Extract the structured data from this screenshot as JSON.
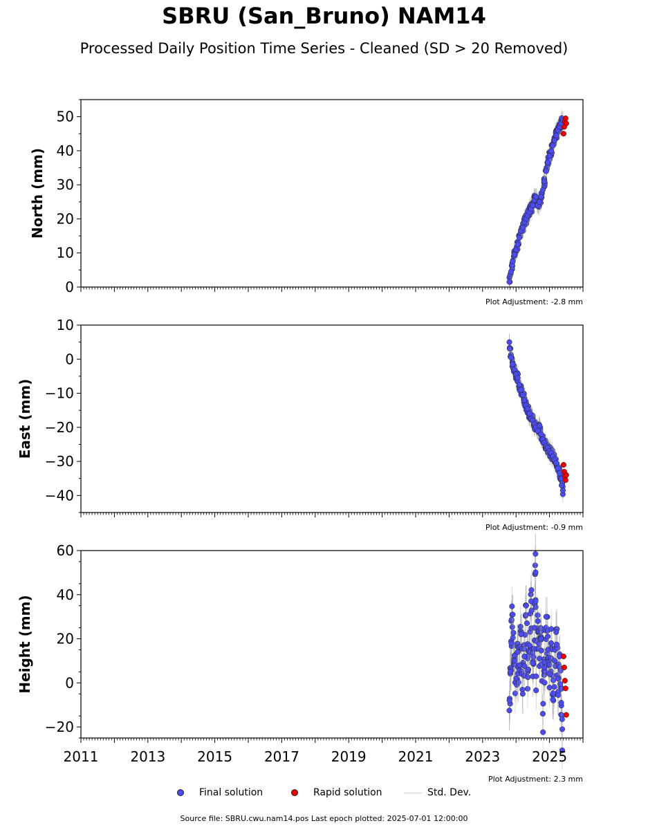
{
  "title": "SBRU (San_Bruno) NAM14",
  "subtitle": "Processed Daily Position Time Series - Cleaned (SD > 20 Removed)",
  "legend": {
    "final_label": "Final solution",
    "rapid_label": "Rapid solution",
    "std_label": "Std. Dev."
  },
  "colors": {
    "final": "#4b4bee",
    "rapid": "#ee0000",
    "std": "#bdbdbd",
    "edge": "#222222"
  },
  "footer": "Source file: SBRU.cwu.nam14.pos  Last epoch plotted: 2025-07-01 12:00:00",
  "chart_data": [
    {
      "type": "scatter",
      "ylabel": "North (mm)",
      "adjustment": "Plot Adjustment: -2.8 mm",
      "xlim": [
        2011,
        2026
      ],
      "ylim": [
        0,
        55
      ],
      "yticks": [
        0,
        10,
        20,
        30,
        40,
        50
      ],
      "xtick_labels_shown": false,
      "series": [
        {
          "name": "Final solution",
          "x": [
            2023.8,
            2023.85,
            2023.9,
            2023.95,
            2024.0,
            2024.05,
            2024.1,
            2024.15,
            2024.2,
            2024.25,
            2024.3,
            2024.35,
            2024.4,
            2024.45,
            2024.5,
            2024.55,
            2024.6,
            2024.65,
            2024.7,
            2024.75,
            2024.8,
            2024.85,
            2024.9,
            2024.95,
            2025.0,
            2025.05,
            2025.1,
            2025.15,
            2025.2,
            2025.25,
            2025.3,
            2025.35,
            2025.4
          ],
          "y": [
            1.5,
            4.5,
            7.5,
            9.5,
            11.0,
            12.5,
            14.5,
            16.5,
            17.5,
            19.0,
            20.0,
            21.0,
            22.0,
            23.0,
            24.0,
            25.5,
            26.5,
            24.0,
            25.0,
            26.5,
            28.5,
            31.0,
            34.0,
            36.5,
            38.5,
            40.0,
            41.5,
            43.0,
            44.5,
            46.0,
            47.0,
            48.0,
            49.0
          ]
        },
        {
          "name": "Rapid solution",
          "x": [
            2025.42,
            2025.44,
            2025.46,
            2025.48,
            2025.5
          ],
          "y": [
            45.0,
            47.0,
            48.5,
            49.5,
            48.0
          ]
        }
      ]
    },
    {
      "type": "scatter",
      "ylabel": "East (mm)",
      "adjustment": "Plot Adjustment: -0.9 mm",
      "xlim": [
        2011,
        2026
      ],
      "ylim": [
        -45,
        10
      ],
      "yticks": [
        -40,
        -30,
        -20,
        -10,
        0,
        10
      ],
      "xtick_labels_shown": false,
      "series": [
        {
          "name": "Final solution",
          "x": [
            2023.8,
            2023.85,
            2023.9,
            2023.95,
            2024.0,
            2024.05,
            2024.1,
            2024.15,
            2024.2,
            2024.25,
            2024.3,
            2024.35,
            2024.4,
            2024.45,
            2024.5,
            2024.55,
            2024.6,
            2024.65,
            2024.7,
            2024.75,
            2024.8,
            2024.85,
            2024.9,
            2024.95,
            2025.0,
            2025.05,
            2025.1,
            2025.15,
            2025.2,
            2025.25,
            2025.3,
            2025.35,
            2025.4
          ],
          "y": [
            5.0,
            0.5,
            -1.5,
            -3.0,
            -4.5,
            -5.5,
            -7.5,
            -9.0,
            -10.5,
            -12.0,
            -13.5,
            -14.5,
            -16.0,
            -17.5,
            -18.0,
            -19.0,
            -20.0,
            -21.0,
            -19.5,
            -22.0,
            -23.5,
            -24.5,
            -25.5,
            -26.0,
            -27.0,
            -27.5,
            -28.5,
            -29.5,
            -30.5,
            -32.0,
            -33.5,
            -35.0,
            -38.5
          ]
        },
        {
          "name": "Rapid solution",
          "x": [
            2025.42,
            2025.44,
            2025.46,
            2025.48,
            2025.5
          ],
          "y": [
            -31.0,
            -33.0,
            -34.5,
            -35.5,
            -34.0
          ]
        }
      ]
    },
    {
      "type": "scatter",
      "ylabel": "Height (mm)",
      "adjustment": "Plot Adjustment: 2.3 mm",
      "xlim": [
        2011,
        2026
      ],
      "ylim": [
        -25,
        60
      ],
      "yticks": [
        -20,
        0,
        20,
        40,
        60
      ],
      "xticks": [
        2011,
        2013,
        2015,
        2017,
        2019,
        2021,
        2023,
        2025
      ],
      "xtick_labels_shown": true,
      "series": [
        {
          "name": "Final solution",
          "x": [
            2023.8,
            2023.83,
            2023.86,
            2023.9,
            2023.95,
            2024.0,
            2024.05,
            2024.1,
            2024.15,
            2024.2,
            2024.25,
            2024.3,
            2024.35,
            2024.4,
            2024.45,
            2024.5,
            2024.55,
            2024.58,
            2024.6,
            2024.65,
            2024.7,
            2024.75,
            2024.8,
            2024.85,
            2024.9,
            2024.95,
            2025.0,
            2025.05,
            2025.1,
            2025.15,
            2025.2,
            2025.25,
            2025.3,
            2025.35,
            2025.38
          ],
          "y": [
            -12.5,
            5.0,
            18.0,
            31.0,
            10.0,
            2.0,
            14.0,
            8.0,
            22.0,
            -5.0,
            12.0,
            35.0,
            6.0,
            17.0,
            37.0,
            9.0,
            25.0,
            58.5,
            3.0,
            28.0,
            11.0,
            20.0,
            -14.0,
            7.0,
            30.0,
            15.0,
            4.0,
            18.0,
            -7.5,
            10.0,
            23.0,
            2.0,
            12.0,
            -9.0,
            -21.0
          ]
        },
        {
          "name": "Rapid solution",
          "x": [
            2025.42,
            2025.44,
            2025.46,
            2025.48,
            2025.5
          ],
          "y": [
            12.0,
            7.0,
            1.0,
            -2.5,
            -14.5
          ]
        }
      ]
    }
  ]
}
